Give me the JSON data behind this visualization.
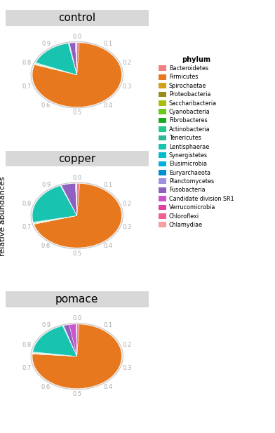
{
  "groups": [
    "control",
    "copper",
    "pomace"
  ],
  "phyla": [
    "Bacteroidetes",
    "Firmicutes",
    "Spirochaetae",
    "Proteobacteria",
    "Saccharibacteria",
    "Cyanobacteria",
    "Fibrobacteres",
    "Actinobacteria",
    "Tenericutes",
    "Lentisphaerae",
    "Synergistetes",
    "Elusimicrobia",
    "Euryarchaeota",
    "Planctomycetes",
    "Fusobacteria",
    "Candidate division SR1",
    "Verrucomicrobia",
    "Chloroflexi",
    "Chlamydiae"
  ],
  "colors": [
    "#F28080",
    "#E8781E",
    "#D4A017",
    "#9B8B1A",
    "#AABC10",
    "#6DC820",
    "#1AAA22",
    "#25C98A",
    "#2DB89A",
    "#18C4B0",
    "#00BCCC",
    "#00AFDC",
    "#0090D0",
    "#A090E0",
    "#9060C0",
    "#CC55CC",
    "#E040A0",
    "#F06090",
    "#F8A0A0"
  ],
  "slices": {
    "control": [
      0.008,
      0.76,
      0.002,
      0.002,
      0.001,
      0.001,
      0.001,
      0.002,
      0.002,
      0.15,
      0.001,
      0.001,
      0.001,
      0.001,
      0.02,
      0.003,
      0.001,
      0.001,
      0.001
    ],
    "copper": [
      0.01,
      0.69,
      0.002,
      0.002,
      0.001,
      0.001,
      0.001,
      0.002,
      0.002,
      0.22,
      0.001,
      0.001,
      0.001,
      0.001,
      0.05,
      0.003,
      0.001,
      0.001,
      0.001
    ],
    "pomace": [
      0.008,
      0.75,
      0.002,
      0.002,
      0.001,
      0.001,
      0.001,
      0.002,
      0.002,
      0.175,
      0.001,
      0.001,
      0.001,
      0.001,
      0.02,
      0.025,
      0.001,
      0.001,
      0.001
    ]
  },
  "panel_bg": "#E8E8E8",
  "title_strip_bg": "#D8D8D8",
  "legend_bg": "#FFFFFF",
  "fig_bg": "#FFFFFF",
  "title_fontsize": 11,
  "legend_title": "phylum",
  "ylabel": "relative abundances",
  "radial_labels": [
    "0.0",
    "0.1",
    "0.2",
    "0.3",
    "0.4",
    "0.5",
    "0.6",
    "0.7",
    "0.8",
    "0.9"
  ],
  "label_color": "#AAAAAA"
}
